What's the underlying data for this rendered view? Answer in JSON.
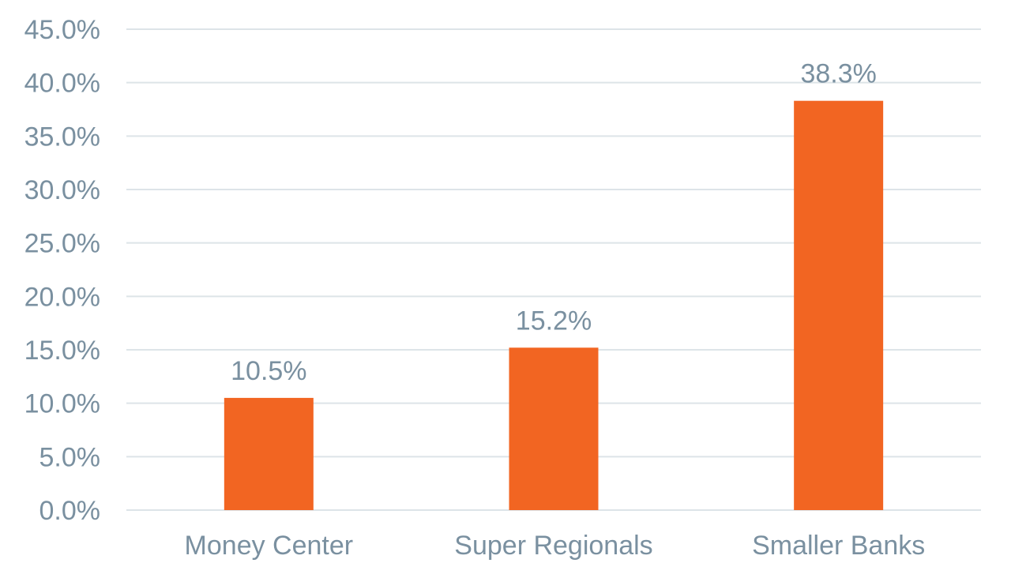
{
  "chart_data": {
    "type": "bar",
    "categories": [
      "Money Center",
      "Super Regionals",
      "Smaller Banks"
    ],
    "values": [
      10.5,
      15.2,
      38.3
    ],
    "data_labels": [
      "10.5%",
      "15.2%",
      "38.3%"
    ],
    "ylim": [
      0,
      45
    ],
    "yticks": [
      0,
      5,
      10,
      15,
      20,
      25,
      30,
      35,
      40,
      45
    ],
    "ytick_labels": [
      "0.0%",
      "5.0%",
      "10.0%",
      "15.0%",
      "20.0%",
      "25.0%",
      "30.0%",
      "35.0%",
      "40.0%",
      "45.0%"
    ],
    "grid": true,
    "legend": "none"
  },
  "colors": {
    "bar": "#F26522",
    "text": "#7A90A0",
    "grid": "#DDE4E8"
  }
}
